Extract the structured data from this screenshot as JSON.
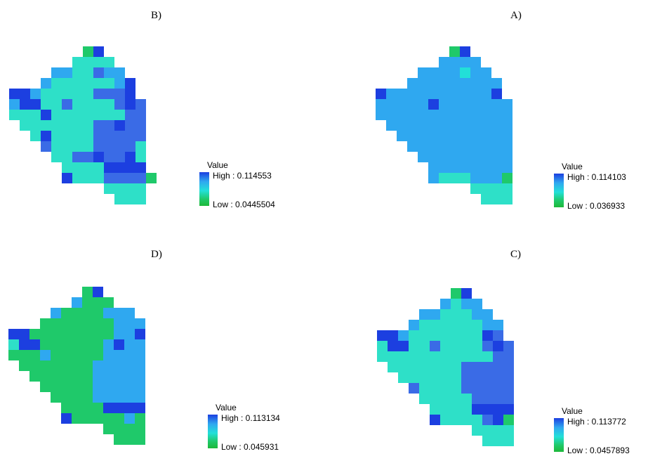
{
  "panels": [
    {
      "label": "B)",
      "legend": {
        "title": "Value",
        "high": "High : 0.114553",
        "low": "Low : 0.0445504"
      }
    },
    {
      "label": "A)",
      "legend": {
        "title": "Value",
        "high": "High : 0.114103",
        "low": "Low : 0.036933"
      }
    },
    {
      "label": "D)",
      "legend": {
        "title": "Value",
        "high": "High : 0.113134",
        "low": "Low : 0.045931"
      }
    },
    {
      "label": "C)",
      "legend": {
        "title": "Value",
        "high": "High : 0.113772",
        "low": "Low : 0.0457893"
      }
    }
  ],
  "colors": {
    "high": "#1c3fe0",
    "mid": "#22e0d8",
    "low": "#1db83a"
  },
  "maps": {
    "B": [
      ".......GB......",
      "......MMMM.....",
      "....CCMMNCC....",
      "...CMMMMMMCB...",
      "BBCMMMMMNNNB...",
      "CBBMMNMMMMNBN..",
      "MMMBMMMMMMMNN..",
      ".MMMMMMMNNBNN..",
      "..MBMMMMNNNNN..",
      "...NMMMMNNNNM..",
      "....MMNNBNNBM..",
      ".....MMMMBBBB..",
      ".....BMMMNNNNG.",
      ".........MMMM..",
      "..........MMM.."
    ],
    "A": [
      ".......GB......",
      "......CCCC.....",
      "....CCCCTCC....",
      "...CCCCCCCCC...",
      "BCCCCCCCCCCB...",
      "CCCCCBCCCCCCC..",
      "CCCCCCCCCCCCC..",
      ".CCCCCCCCCCCC..",
      "..CCCCCCCCCCC..",
      "...CCCCCCCCCC..",
      "....CCCCCCCCC..",
      ".....CCCCCCCC..",
      ".....CMMMCCCG..",
      ".........MMMM..",
      "..........MMM.."
    ],
    "D": [
      ".......GB......",
      "......CGGG.....",
      "....CGGGGCCC...",
      "...GGGGGGGCCC..",
      "BBGGGGGGGGCCB..",
      "MBBGGGGGGCBCC..",
      "GGGCGGGGGCCCC..",
      ".GGGGGGGCCCCC..",
      "..GGGGGGCCCCC..",
      "...GGGGGCCCCC..",
      "....GGGGCCCCC..",
      ".....GGGGBBBB..",
      ".....BGGGGGCG..",
      ".........GGGG..",
      "..........GGG.."
    ],
    "C": [
      ".......GB......",
      "......CMCC.....",
      "....CCMMMCC....",
      "...CMMMMMMCC...",
      "BBCMMMMMMMBN...",
      "MBBMMNMMMMNBN..",
      "MMMMMMMMMMMNN..",
      ".MMMMMMMNNNNN..",
      "..MMMMMMNNNNN..",
      "...NMMMMNNNNN..",
      "....MMMMMNNNN..",
      ".....MMMMBBBB..",
      ".....BMMMMNBG..",
      ".........MMMM..",
      "..........MMM.."
    ]
  },
  "palette": {
    "B": "#1c3fe0",
    "N": "#3a6be6",
    "C": "#2fa8f0",
    "T": "#22e0d8",
    "M": "#2ee0c8",
    "G": "#1fc96a"
  }
}
